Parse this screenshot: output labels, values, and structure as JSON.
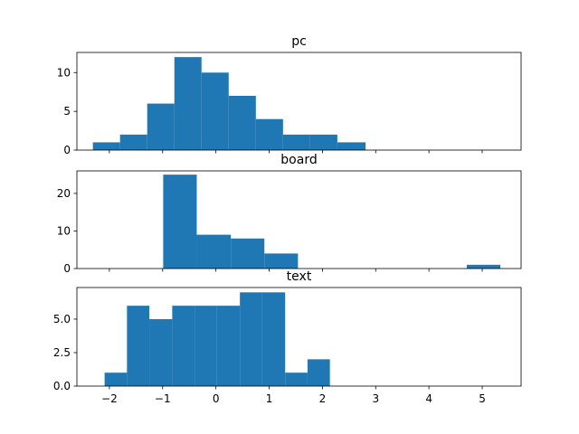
{
  "chart_data": [
    {
      "type": "histogram",
      "title": "pc",
      "color": "#1f77b4",
      "bins": [
        -2.31,
        -1.8,
        -1.29,
        -0.78,
        -0.27,
        0.24,
        0.75,
        1.26,
        1.77,
        2.28,
        2.81
      ],
      "values": [
        1,
        2,
        6,
        12,
        10,
        7,
        4,
        2,
        2,
        1
      ],
      "xlim": [
        -2.61,
        5.73
      ],
      "xticks": [
        -2,
        -1,
        0,
        1,
        2,
        3,
        4,
        5
      ],
      "ylim": [
        0,
        12.6
      ],
      "yticks": [
        0,
        5,
        10
      ]
    },
    {
      "type": "histogram",
      "title": "board",
      "color": "#1f77b4",
      "bins": [
        -0.99,
        -0.36,
        0.28,
        0.91,
        1.54,
        2.18,
        2.81,
        3.44,
        4.08,
        4.71,
        5.34
      ],
      "values": [
        25,
        9,
        8,
        4,
        0,
        0,
        0,
        0,
        0,
        1
      ],
      "xlim": [
        -2.61,
        5.73
      ],
      "xticks": [
        -2,
        -1,
        0,
        1,
        2,
        3,
        4,
        5
      ],
      "ylim": [
        0,
        26
      ],
      "yticks": [
        0,
        10,
        20
      ]
    },
    {
      "type": "histogram",
      "title": "text",
      "color": "#1f77b4",
      "bins": [
        -2.09,
        -1.67,
        -1.25,
        -0.82,
        -0.4,
        0.02,
        0.45,
        0.87,
        1.3,
        1.72,
        2.14
      ],
      "values": [
        1,
        6,
        5,
        6,
        6,
        6,
        7,
        7,
        1,
        2
      ],
      "xlim": [
        -2.61,
        5.73
      ],
      "xticks": [
        {
          "value": -2,
          "label": "−2"
        },
        {
          "value": -1,
          "label": "−1"
        },
        0,
        1,
        2,
        3,
        4,
        5
      ],
      "ylim": [
        0,
        7.36
      ],
      "yticks": [
        {
          "value": 0,
          "label": "0.0"
        },
        {
          "value": 2.5,
          "label": "2.5"
        },
        {
          "value": 5,
          "label": "5.0"
        }
      ]
    }
  ]
}
